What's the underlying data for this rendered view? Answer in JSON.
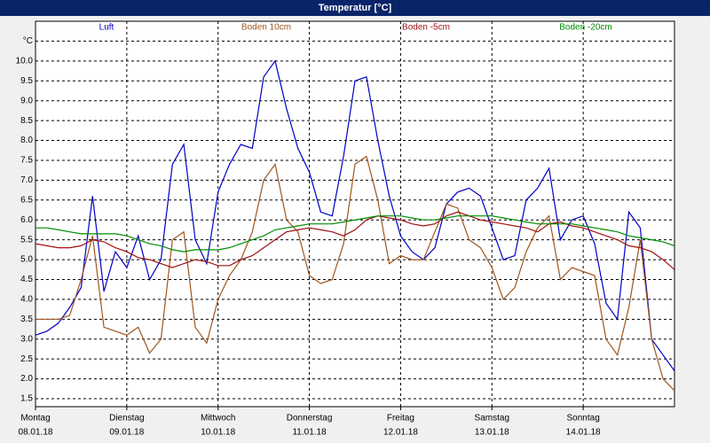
{
  "chart_data": {
    "type": "line",
    "title": "Temperatur [°C]",
    "x": [
      0,
      3,
      6,
      9,
      12,
      15,
      18,
      21,
      24,
      27,
      30,
      33,
      36,
      39,
      42,
      45,
      48,
      51,
      54,
      57,
      60,
      63,
      66,
      69,
      72,
      75,
      78,
      81,
      84,
      87,
      90,
      93,
      96,
      99,
      102,
      105,
      108,
      111,
      114,
      117,
      120,
      123,
      126,
      129,
      132,
      135,
      138,
      141,
      144,
      147,
      150,
      153,
      156,
      159,
      162,
      165,
      168
    ],
    "xlim": [
      0,
      168
    ],
    "xticks": [
      {
        "value": 0,
        "label": "Montag",
        "date": "08.01.18"
      },
      {
        "value": 24,
        "label": "Dienstag",
        "date": "09.01.18"
      },
      {
        "value": 48,
        "label": "Mittwoch",
        "date": "10.01.18"
      },
      {
        "value": 72,
        "label": "Donnerstag",
        "date": "11.01.18"
      },
      {
        "value": 96,
        "label": "Freitag",
        "date": "12.01.18"
      },
      {
        "value": 120,
        "label": "Samstag",
        "date": "13.01.18"
      },
      {
        "value": 144,
        "label": "Sonntag",
        "date": "14.01.18"
      }
    ],
    "ylim": [
      1.3,
      11.0
    ],
    "yticks": [
      1.5,
      {
        "value": 2,
        "label": "2.0"
      },
      2.5,
      {
        "value": 3,
        "label": "3.0"
      },
      3.5,
      {
        "value": 4,
        "label": "4.0"
      },
      4.5,
      {
        "value": 5,
        "label": "5.0"
      },
      5.5,
      {
        "value": 6,
        "label": "6.0"
      },
      6.5,
      {
        "value": 7,
        "label": "7.0"
      },
      7.5,
      {
        "value": 8,
        "label": "8.0"
      },
      8.5,
      {
        "value": 9,
        "label": "9.0"
      },
      9.5,
      {
        "value": 10,
        "label": "10.0"
      },
      {
        "value": 10.5,
        "label": "°C"
      }
    ],
    "grid": true,
    "series": [
      {
        "name": "Luft",
        "color": "#0000c8",
        "values": [
          3.1,
          3.2,
          3.4,
          3.8,
          4.3,
          6.6,
          4.2,
          5.2,
          4.8,
          5.6,
          4.5,
          5.0,
          7.4,
          7.9,
          5.5,
          4.9,
          6.7,
          7.4,
          7.9,
          7.8,
          9.6,
          10.0,
          8.8,
          7.8,
          7.2,
          6.2,
          6.1,
          7.6,
          9.5,
          9.6,
          8.0,
          6.6,
          5.6,
          5.2,
          5.0,
          5.3,
          6.4,
          6.7,
          6.8,
          6.6,
          5.8,
          5.0,
          5.1,
          6.5,
          6.8,
          7.3,
          5.5,
          6.0,
          6.1,
          5.4,
          3.9,
          3.5,
          6.2,
          5.8,
          3.0,
          2.6,
          2.2
        ]
      },
      {
        "name": "Boden 10cm",
        "color": "#a0561e",
        "values": [
          3.5,
          3.5,
          3.5,
          3.6,
          4.5,
          5.6,
          3.3,
          3.2,
          3.1,
          3.3,
          2.65,
          3.0,
          5.5,
          5.7,
          3.3,
          2.9,
          4.0,
          4.6,
          5.0,
          5.7,
          7.0,
          7.4,
          6.0,
          5.7,
          4.6,
          4.4,
          4.5,
          5.4,
          7.4,
          7.6,
          6.5,
          4.9,
          5.1,
          5.0,
          5.0,
          5.7,
          6.4,
          6.3,
          5.5,
          5.3,
          4.8,
          4.0,
          4.3,
          5.2,
          5.8,
          6.1,
          4.5,
          4.8,
          4.7,
          4.6,
          3.0,
          2.6,
          3.8,
          5.5,
          3.0,
          2.0,
          1.7
        ]
      },
      {
        "name": "Boden -5cm",
        "color": "#a01010",
        "values": [
          5.4,
          5.35,
          5.3,
          5.3,
          5.35,
          5.5,
          5.45,
          5.3,
          5.2,
          5.05,
          5.0,
          4.9,
          4.8,
          4.9,
          5.0,
          4.95,
          4.85,
          4.85,
          5.0,
          5.1,
          5.3,
          5.5,
          5.7,
          5.75,
          5.8,
          5.75,
          5.7,
          5.6,
          5.75,
          6.0,
          6.1,
          6.05,
          6.0,
          5.9,
          5.85,
          5.9,
          6.1,
          6.2,
          6.1,
          6.0,
          5.95,
          5.9,
          5.85,
          5.8,
          5.7,
          5.9,
          5.95,
          5.85,
          5.8,
          5.7,
          5.6,
          5.5,
          5.35,
          5.3,
          5.2,
          5.0,
          4.75
        ]
      },
      {
        "name": "Boden -20cm",
        "color": "#008c00",
        "values": [
          5.8,
          5.8,
          5.75,
          5.7,
          5.65,
          5.65,
          5.65,
          5.65,
          5.6,
          5.5,
          5.4,
          5.35,
          5.25,
          5.2,
          5.25,
          5.25,
          5.25,
          5.3,
          5.4,
          5.5,
          5.6,
          5.75,
          5.8,
          5.85,
          5.9,
          5.9,
          5.9,
          5.95,
          6.0,
          6.05,
          6.1,
          6.1,
          6.1,
          6.05,
          6.0,
          6.0,
          6.05,
          6.1,
          6.1,
          6.1,
          6.1,
          6.05,
          6.0,
          5.95,
          5.9,
          5.9,
          5.9,
          5.9,
          5.85,
          5.8,
          5.75,
          5.7,
          5.6,
          5.55,
          5.5,
          5.45,
          5.35
        ]
      }
    ]
  }
}
